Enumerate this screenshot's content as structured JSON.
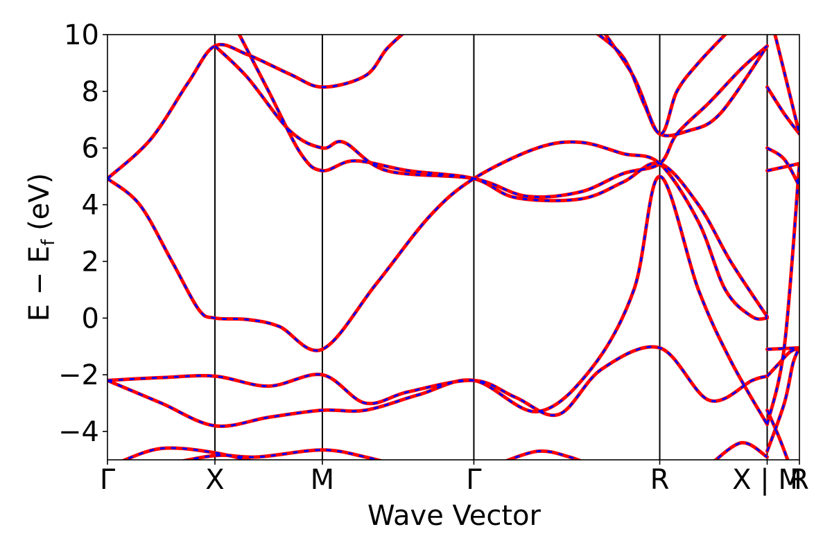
{
  "chart_data": {
    "type": "line",
    "title": "",
    "xlabel": "Wave Vector",
    "ylabel": "E − E",
    "ylabel_sub": "f",
    "ylabel_unit": "(eV)",
    "ylim": [
      -5,
      10
    ],
    "yticks": [
      -4,
      -2,
      0,
      2,
      4,
      6,
      8,
      10
    ],
    "ytick_labels": [
      "−4",
      "−2",
      "0",
      "2",
      "4",
      "6",
      "8",
      "10"
    ],
    "xlim": [
      0,
      6.44
    ],
    "kpoints": [
      {
        "label": "Γ",
        "x": 0.0
      },
      {
        "label": "X",
        "x": 1.0
      },
      {
        "label": "M",
        "x": 2.0
      },
      {
        "label": "Γ",
        "x": 3.41
      },
      {
        "label": "R",
        "x": 5.14
      },
      {
        "label": "X | M",
        "x": 6.14
      },
      {
        "label": "R",
        "x": 6.44
      }
    ],
    "grid": false,
    "series": [
      {
        "color": "#ff0000",
        "style": "solid",
        "bands": [
          [
            [
              0,
              4.92
            ],
            [
              0.3,
              4.0
            ],
            [
              0.6,
              2.0
            ],
            [
              0.85,
              0.3
            ],
            [
              1.0,
              0.0
            ],
            [
              1.3,
              -0.05
            ],
            [
              1.6,
              -0.3
            ],
            [
              2.0,
              -1.1
            ],
            [
              2.5,
              1.2
            ],
            [
              3.0,
              3.6
            ],
            [
              3.41,
              4.92
            ],
            [
              4.0,
              6.0
            ],
            [
              4.4,
              6.2
            ],
            [
              4.8,
              5.8
            ],
            [
              5.14,
              5.45
            ],
            [
              5.5,
              3.4
            ],
            [
              5.75,
              1.0
            ],
            [
              6.0,
              0.05
            ],
            [
              6.14,
              0.0
            ]
          ],
          [
            [
              0,
              4.92
            ],
            [
              0.4,
              6.3
            ],
            [
              0.75,
              8.3
            ],
            [
              1.0,
              9.6
            ],
            [
              1.3,
              9.3
            ],
            [
              1.7,
              8.6
            ],
            [
              2.0,
              8.15
            ],
            [
              2.4,
              8.55
            ],
            [
              2.6,
              9.5
            ],
            [
              2.8,
              10.2
            ]
          ],
          [
            [
              0,
              -2.2
            ],
            [
              0.5,
              -2.1
            ],
            [
              1.0,
              -2.05
            ],
            [
              1.5,
              -2.4
            ],
            [
              2.0,
              -2.0
            ],
            [
              2.4,
              -3.0
            ],
            [
              2.8,
              -2.6
            ],
            [
              3.41,
              -2.2
            ],
            [
              3.8,
              -2.8
            ],
            [
              4.2,
              -3.4
            ],
            [
              4.6,
              -1.8
            ],
            [
              5.14,
              -1.05
            ],
            [
              5.6,
              -2.9
            ],
            [
              6.0,
              -2.2
            ],
            [
              6.14,
              -2.05
            ]
          ],
          [
            [
              0,
              -2.2
            ],
            [
              0.5,
              -3.0
            ],
            [
              1.0,
              -3.8
            ],
            [
              1.5,
              -3.5
            ],
            [
              2.0,
              -3.25
            ],
            [
              2.4,
              -3.25
            ],
            [
              2.9,
              -2.7
            ],
            [
              3.41,
              -2.2
            ],
            [
              4.0,
              -3.3
            ],
            [
              4.5,
              -1.8
            ],
            [
              4.9,
              1.0
            ],
            [
              5.14,
              5.0
            ],
            [
              5.5,
              1.0
            ],
            [
              5.8,
              -1.5
            ],
            [
              6.14,
              -3.75
            ]
          ],
          [
            [
              1.0,
              9.6
            ],
            [
              1.3,
              8.5
            ],
            [
              1.7,
              6.6
            ],
            [
              2.0,
              6.0
            ],
            [
              2.2,
              6.2
            ],
            [
              2.6,
              5.2
            ],
            [
              3.41,
              4.92
            ],
            [
              3.9,
              4.3
            ],
            [
              4.4,
              4.45
            ],
            [
              4.8,
              5.1
            ],
            [
              5.14,
              5.45
            ],
            [
              5.3,
              6.5
            ],
            [
              5.6,
              7.6
            ],
            [
              5.9,
              8.8
            ],
            [
              6.14,
              9.6
            ]
          ],
          [
            [
              1.2,
              10.2
            ],
            [
              1.5,
              8.0
            ],
            [
              1.8,
              5.8
            ],
            [
              2.0,
              5.2
            ],
            [
              2.3,
              5.55
            ],
            [
              2.8,
              5.2
            ],
            [
              3.41,
              4.92
            ],
            [
              3.8,
              4.25
            ],
            [
              4.4,
              4.2
            ],
            [
              4.8,
              4.8
            ],
            [
              5.14,
              5.45
            ],
            [
              5.5,
              4.0
            ],
            [
              5.8,
              2.0
            ],
            [
              6.14,
              0.05
            ]
          ],
          [
            [
              4.5,
              10.2
            ],
            [
              4.8,
              9.2
            ],
            [
              5.0,
              7.5
            ],
            [
              5.14,
              6.5
            ],
            [
              5.4,
              6.6
            ],
            [
              5.7,
              7.2
            ],
            [
              6.14,
              9.6
            ]
          ],
          [
            [
              4.6,
              10.2
            ],
            [
              4.9,
              8.5
            ],
            [
              5.14,
              6.5
            ],
            [
              5.3,
              8.0
            ],
            [
              5.5,
              9.0
            ],
            [
              5.8,
              10.2
            ]
          ],
          [
            [
              0.1,
              -5.1
            ],
            [
              0.5,
              -4.6
            ],
            [
              1.0,
              -4.75
            ],
            [
              1.5,
              -5.2
            ]
          ],
          [
            [
              0.5,
              -5.2
            ],
            [
              1.0,
              -4.85
            ],
            [
              1.4,
              -4.9
            ],
            [
              2.0,
              -4.65
            ],
            [
              2.4,
              -4.9
            ],
            [
              2.7,
              -5.2
            ]
          ],
          [
            [
              3.6,
              -5.2
            ],
            [
              4.0,
              -4.7
            ],
            [
              4.3,
              -4.9
            ],
            [
              4.5,
              -5.2
            ]
          ],
          [
            [
              5.6,
              -5.2
            ],
            [
              5.9,
              -4.4
            ],
            [
              6.14,
              -4.9
            ]
          ],
          [
            [
              6.14,
              8.15
            ],
            [
              6.3,
              7.2
            ],
            [
              6.44,
              6.5
            ]
          ],
          [
            [
              6.14,
              6.0
            ],
            [
              6.3,
              5.6
            ],
            [
              6.44,
              4.65
            ]
          ],
          [
            [
              6.14,
              5.2
            ],
            [
              6.44,
              5.45
            ]
          ],
          [
            [
              6.14,
              -1.1
            ],
            [
              6.44,
              -1.05
            ]
          ],
          [
            [
              6.14,
              -2.05
            ],
            [
              6.25,
              -1.6
            ],
            [
              6.35,
              -1.2
            ],
            [
              6.44,
              -1.05
            ]
          ],
          [
            [
              6.14,
              -4.7
            ],
            [
              6.3,
              -3.0
            ],
            [
              6.38,
              -1.6
            ],
            [
              6.44,
              -1.05
            ]
          ],
          [
            [
              6.14,
              -3.75
            ],
            [
              6.3,
              -1.0
            ],
            [
              6.44,
              5.45
            ]
          ],
          [
            [
              6.2,
              10.2
            ],
            [
              6.33,
              8.2
            ],
            [
              6.44,
              6.5
            ]
          ],
          [
            [
              6.14,
              -3.25
            ],
            [
              6.25,
              -4.2
            ],
            [
              6.35,
              -5.2
            ]
          ]
        ]
      },
      {
        "color": "#0000ff",
        "style": "dashed",
        "bands": "same as red"
      }
    ]
  }
}
